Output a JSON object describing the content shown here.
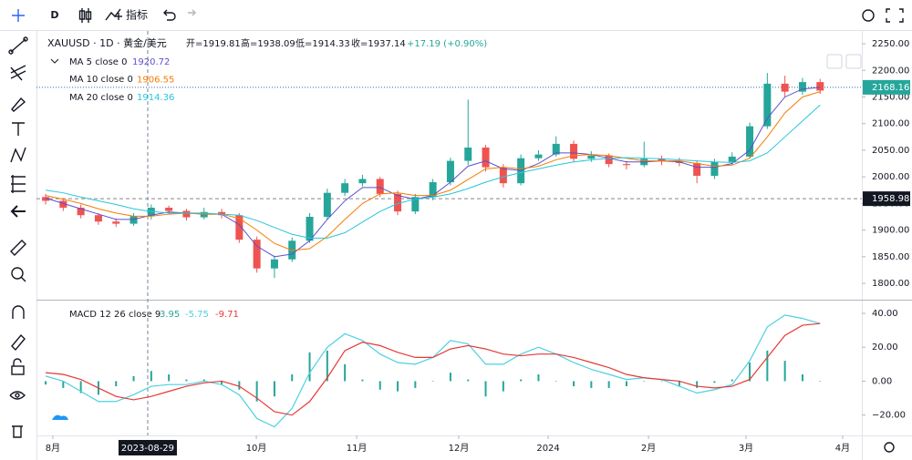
{
  "toolbar": {
    "interval": "D",
    "indicators": "指标"
  },
  "chart_data": [
    {
      "type": "candlestick",
      "symbol": "XAUUSD · 1D · 黄金/美元",
      "open": "开=1919.81",
      "high": "高=1938.09",
      "low": "低=1914.33",
      "close": "收=1937.14",
      "change": "+17.19 (+0.90%)",
      "up_color": "#26a69a",
      "down_color": "#ef5350",
      "xlim": [
        -0.52,
        46.37
      ],
      "ylim": [
        1771,
        2274
      ],
      "yticks": [
        {
          "value": 1800,
          "label": "1800.00"
        },
        {
          "value": 1850,
          "label": "1850.00"
        },
        {
          "value": 1900,
          "label": "1900.00"
        },
        {
          "value": 1950,
          "label": "1950.00"
        },
        {
          "value": 2000,
          "label": "2000.00"
        },
        {
          "value": 2050,
          "label": "2050.00"
        },
        {
          "value": 2100,
          "label": "2100.00"
        },
        {
          "value": 2150,
          "label": "2150.00"
        },
        {
          "value": 2200,
          "label": "2200.00"
        },
        {
          "value": 2250,
          "label": "2250.00"
        }
      ],
      "xticks": [
        {
          "value": 0.41,
          "label": "8月"
        },
        {
          "value": 11.97,
          "label": "10月"
        },
        {
          "value": 17.67,
          "label": "11月"
        },
        {
          "value": 23.47,
          "label": "12月"
        },
        {
          "value": 28.55,
          "label": "2024"
        },
        {
          "value": 34.25,
          "label": "2月"
        },
        {
          "value": 39.79,
          "label": "3月"
        },
        {
          "value": 45.28,
          "label": "4月"
        }
      ],
      "crosshair": {
        "value": 5.8,
        "label": "2023-08-29"
      },
      "price_labels": [
        {
          "value": 2168.16,
          "color": "#26a69a",
          "line": "#2a6cb0"
        },
        {
          "value": 1958.98,
          "color": "#131722",
          "line": "#888888"
        }
      ],
      "candles": [
        [
          1962,
          1968,
          1948,
          1955
        ],
        [
          1955,
          1960,
          1936,
          1942
        ],
        [
          1942,
          1948,
          1922,
          1928
        ],
        [
          1928,
          1932,
          1910,
          1916
        ],
        [
          1916,
          1922,
          1906,
          1912
        ],
        [
          1912,
          1932,
          1908,
          1926
        ],
        [
          1926,
          1948,
          1920,
          1942
        ],
        [
          1942,
          1946,
          1930,
          1936
        ],
        [
          1936,
          1940,
          1918,
          1924
        ],
        [
          1924,
          1942,
          1920,
          1934
        ],
        [
          1934,
          1940,
          1922,
          1928
        ],
        [
          1928,
          1932,
          1876,
          1882
        ],
        [
          1882,
          1888,
          1820,
          1828
        ],
        [
          1828,
          1852,
          1810,
          1845
        ],
        [
          1845,
          1886,
          1840,
          1880
        ],
        [
          1880,
          1932,
          1876,
          1925
        ],
        [
          1925,
          1978,
          1920,
          1970
        ],
        [
          1970,
          1996,
          1964,
          1988
        ],
        [
          1988,
          2004,
          1982,
          1996
        ],
        [
          1996,
          2000,
          1962,
          1968
        ],
        [
          1968,
          1974,
          1928,
          1935
        ],
        [
          1935,
          1968,
          1930,
          1962
        ],
        [
          1962,
          1996,
          1956,
          1990
        ],
        [
          1990,
          2036,
          1984,
          2030
        ],
        [
          2030,
          2145,
          2022,
          2055
        ],
        [
          2055,
          2060,
          2010,
          2018
        ],
        [
          2018,
          2024,
          1980,
          1988
        ],
        [
          1988,
          2042,
          1984,
          2035
        ],
        [
          2035,
          2050,
          2030,
          2042
        ],
        [
          2042,
          2076,
          2038,
          2062
        ],
        [
          2062,
          2068,
          2028,
          2034
        ],
        [
          2034,
          2048,
          2028,
          2040
        ],
        [
          2040,
          2044,
          2018,
          2024
        ],
        [
          2024,
          2030,
          2014,
          2022
        ],
        [
          2022,
          2066,
          2018,
          2034
        ],
        [
          2034,
          2040,
          2022,
          2030
        ],
        [
          2030,
          2036,
          2020,
          2026
        ],
        [
          2026,
          2030,
          1988,
          2002
        ],
        [
          2002,
          2034,
          1996,
          2028
        ],
        [
          2028,
          2046,
          2022,
          2038
        ],
        [
          2038,
          2102,
          2034,
          2095
        ],
        [
          2095,
          2195,
          2090,
          2175
        ],
        [
          2175,
          2190,
          2150,
          2160
        ],
        [
          2160,
          2186,
          2154,
          2178
        ],
        [
          2178,
          2184,
          2156,
          2162
        ]
      ],
      "series": [
        {
          "name": "MA 5 close 0",
          "legend_value": 1920.72,
          "color": "#5b4fcf",
          "values": [
            1960,
            1950,
            1940,
            1930,
            1920,
            1920,
            1928,
            1934,
            1932,
            1930,
            1930,
            1910,
            1870,
            1850,
            1855,
            1880,
            1920,
            1955,
            1980,
            1980,
            1965,
            1958,
            1965,
            1990,
            2020,
            2030,
            2015,
            2012,
            2025,
            2045,
            2045,
            2042,
            2035,
            2028,
            2028,
            2030,
            2028,
            2018,
            2018,
            2025,
            2050,
            2110,
            2150,
            2165,
            2168
          ]
        },
        {
          "name": "MA 10 close 0",
          "legend_value": 1906.55,
          "color": "#f57c00",
          "values": [
            1965,
            1958,
            1950,
            1940,
            1932,
            1926,
            1926,
            1930,
            1932,
            1930,
            1930,
            1922,
            1900,
            1875,
            1862,
            1865,
            1888,
            1920,
            1950,
            1968,
            1970,
            1965,
            1965,
            1975,
            1995,
            2015,
            2018,
            2015,
            2020,
            2032,
            2040,
            2042,
            2040,
            2035,
            2030,
            2030,
            2030,
            2025,
            2020,
            2022,
            2035,
            2075,
            2120,
            2150,
            2160
          ]
        },
        {
          "name": "MA 20 close 0",
          "legend_value": 1914.36,
          "color": "#26c6da",
          "values": [
            1975,
            1970,
            1962,
            1955,
            1948,
            1940,
            1935,
            1932,
            1932,
            1932,
            1930,
            1928,
            1918,
            1905,
            1892,
            1885,
            1885,
            1895,
            1915,
            1935,
            1950,
            1958,
            1962,
            1968,
            1978,
            1990,
            2000,
            2008,
            2015,
            2022,
            2028,
            2032,
            2035,
            2036,
            2035,
            2034,
            2032,
            2030,
            2028,
            2027,
            2030,
            2045,
            2075,
            2105,
            2135
          ]
        }
      ]
    },
    {
      "type": "macd",
      "name": "MACD 12 26 close 9",
      "ylim": [
        -32,
        47
      ],
      "yticks": [
        {
          "value": -20,
          "label": "−20.00"
        },
        {
          "value": 0,
          "label": "0.00"
        },
        {
          "value": 20,
          "label": "20.00"
        },
        {
          "value": 40,
          "label": "40.00"
        }
      ],
      "histogram": {
        "legend_value": 3.95,
        "color": "#26a69a",
        "values": [
          -2,
          -4,
          -7,
          -8,
          -3,
          3,
          6,
          4,
          1,
          1,
          -2,
          -5,
          -12,
          -9,
          4,
          17,
          18,
          10,
          1,
          -5,
          -6,
          -4,
          0,
          5,
          1,
          -9,
          -6,
          1,
          4,
          0,
          -3,
          -4,
          -4,
          -3,
          0,
          0,
          -3,
          -4,
          -1,
          1,
          11,
          18,
          12,
          4,
          0
        ]
      },
      "series": [
        {
          "legend_value": -5.75,
          "color": "#4dd0e1",
          "values": [
            3,
            0,
            -6,
            -12,
            -12,
            -8,
            -3,
            -2,
            -2,
            0,
            -2,
            -8,
            -22,
            -27,
            -16,
            5,
            20,
            28,
            24,
            16,
            11,
            10,
            14,
            24,
            22,
            10,
            10,
            16,
            20,
            16,
            11,
            7,
            4,
            1,
            2,
            1,
            -3,
            -7,
            -5,
            -2,
            12,
            32,
            39,
            37,
            34
          ]
        },
        {
          "legend_value": -9.71,
          "color": "#e53935",
          "values": [
            5,
            4,
            1,
            -4,
            -9,
            -11,
            -9,
            -6,
            -3,
            -1,
            0,
            -3,
            -10,
            -18,
            -20,
            -12,
            2,
            18,
            23,
            21,
            17,
            14,
            14,
            19,
            21,
            19,
            16,
            15,
            16,
            16,
            14,
            11,
            8,
            4,
            2,
            1,
            0,
            -3,
            -4,
            -3,
            1,
            14,
            27,
            33,
            34
          ]
        }
      ]
    }
  ]
}
